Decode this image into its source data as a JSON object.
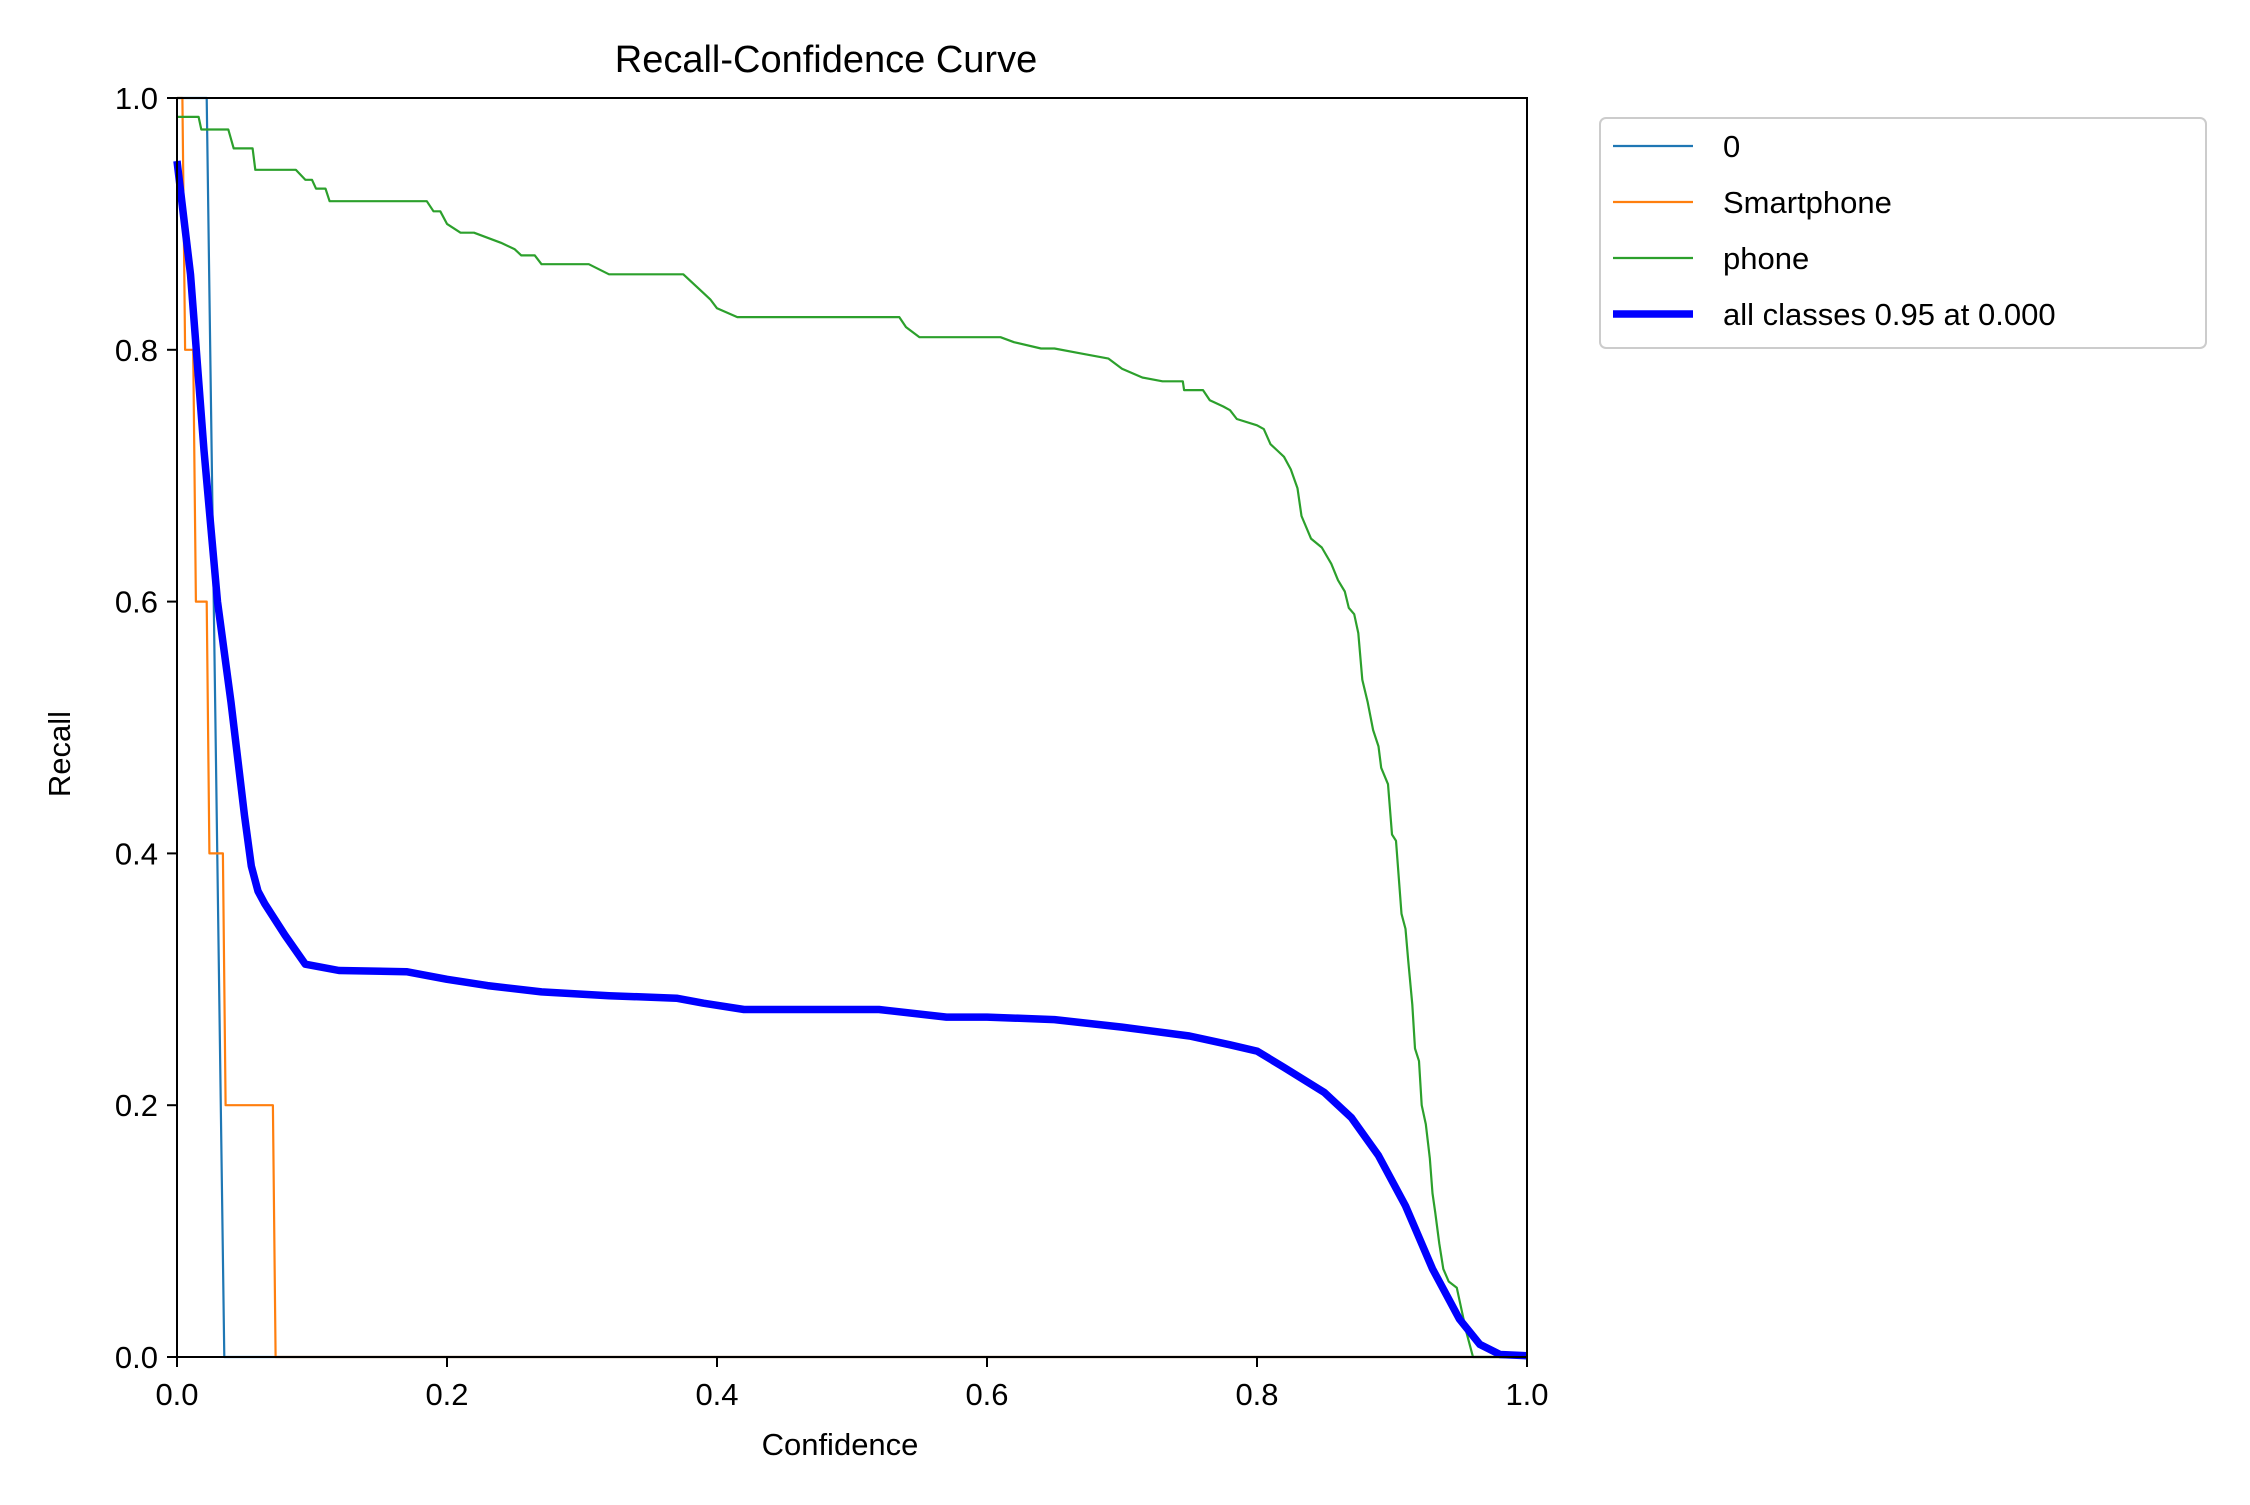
{
  "chart_data": {
    "type": "line",
    "title": "Recall-Confidence Curve",
    "xlabel": "Confidence",
    "ylabel": "Recall",
    "xlim": [
      0.0,
      1.0
    ],
    "ylim": [
      0.0,
      1.0
    ],
    "xticks": [
      "0.0",
      "0.2",
      "0.4",
      "0.6",
      "0.8",
      "1.0"
    ],
    "yticks": [
      "0.0",
      "0.2",
      "0.4",
      "0.6",
      "0.8",
      "1.0"
    ],
    "grid": false,
    "legend_position": "outside upper right",
    "series": [
      {
        "name": "0",
        "color": "#1f77b4",
        "width": "thin",
        "points": [
          [
            0.0,
            1.0
          ],
          [
            0.022,
            1.0
          ],
          [
            0.035,
            0.0
          ],
          [
            1.0,
            0.0
          ]
        ]
      },
      {
        "name": "Smartphone",
        "color": "#ff7f0e",
        "width": "thin",
        "points": [
          [
            0.0,
            1.0
          ],
          [
            0.004,
            1.0
          ],
          [
            0.006,
            0.8
          ],
          [
            0.012,
            0.8
          ],
          [
            0.014,
            0.6
          ],
          [
            0.022,
            0.6
          ],
          [
            0.024,
            0.4
          ],
          [
            0.034,
            0.4
          ],
          [
            0.036,
            0.2
          ],
          [
            0.071,
            0.2
          ],
          [
            0.073,
            0.0
          ],
          [
            1.0,
            0.0
          ]
        ]
      },
      {
        "name": "phone",
        "color": "#2ca02c",
        "width": "thin",
        "points": [
          [
            0.0,
            0.985
          ],
          [
            0.016,
            0.985
          ],
          [
            0.018,
            0.975
          ],
          [
            0.038,
            0.975
          ],
          [
            0.042,
            0.96
          ],
          [
            0.056,
            0.96
          ],
          [
            0.058,
            0.943
          ],
          [
            0.088,
            0.943
          ],
          [
            0.095,
            0.935
          ],
          [
            0.1,
            0.935
          ],
          [
            0.103,
            0.928
          ],
          [
            0.11,
            0.928
          ],
          [
            0.113,
            0.918
          ],
          [
            0.185,
            0.918
          ],
          [
            0.19,
            0.91
          ],
          [
            0.195,
            0.91
          ],
          [
            0.2,
            0.9
          ],
          [
            0.21,
            0.893
          ],
          [
            0.22,
            0.893
          ],
          [
            0.24,
            0.885
          ],
          [
            0.25,
            0.88
          ],
          [
            0.255,
            0.875
          ],
          [
            0.265,
            0.875
          ],
          [
            0.27,
            0.868
          ],
          [
            0.305,
            0.868
          ],
          [
            0.32,
            0.86
          ],
          [
            0.375,
            0.86
          ],
          [
            0.39,
            0.845
          ],
          [
            0.395,
            0.84
          ],
          [
            0.4,
            0.833
          ],
          [
            0.415,
            0.826
          ],
          [
            0.535,
            0.826
          ],
          [
            0.54,
            0.818
          ],
          [
            0.55,
            0.81
          ],
          [
            0.61,
            0.81
          ],
          [
            0.62,
            0.806
          ],
          [
            0.64,
            0.801
          ],
          [
            0.65,
            0.801
          ],
          [
            0.67,
            0.797
          ],
          [
            0.69,
            0.793
          ],
          [
            0.7,
            0.785
          ],
          [
            0.715,
            0.778
          ],
          [
            0.73,
            0.775
          ],
          [
            0.745,
            0.775
          ],
          [
            0.746,
            0.768
          ],
          [
            0.76,
            0.768
          ],
          [
            0.765,
            0.76
          ],
          [
            0.775,
            0.755
          ],
          [
            0.78,
            0.752
          ],
          [
            0.785,
            0.745
          ],
          [
            0.8,
            0.74
          ],
          [
            0.805,
            0.737
          ],
          [
            0.81,
            0.725
          ],
          [
            0.815,
            0.72
          ],
          [
            0.82,
            0.715
          ],
          [
            0.825,
            0.705
          ],
          [
            0.83,
            0.69
          ],
          [
            0.833,
            0.668
          ],
          [
            0.84,
            0.65
          ],
          [
            0.848,
            0.643
          ],
          [
            0.855,
            0.63
          ],
          [
            0.86,
            0.617
          ],
          [
            0.865,
            0.608
          ],
          [
            0.868,
            0.595
          ],
          [
            0.872,
            0.59
          ],
          [
            0.875,
            0.575
          ],
          [
            0.878,
            0.538
          ],
          [
            0.882,
            0.52
          ],
          [
            0.886,
            0.498
          ],
          [
            0.89,
            0.485
          ],
          [
            0.892,
            0.468
          ],
          [
            0.897,
            0.455
          ],
          [
            0.9,
            0.415
          ],
          [
            0.903,
            0.41
          ],
          [
            0.907,
            0.352
          ],
          [
            0.91,
            0.34
          ],
          [
            0.912,
            0.315
          ],
          [
            0.915,
            0.28
          ],
          [
            0.917,
            0.245
          ],
          [
            0.92,
            0.235
          ],
          [
            0.922,
            0.2
          ],
          [
            0.925,
            0.185
          ],
          [
            0.928,
            0.158
          ],
          [
            0.93,
            0.13
          ],
          [
            0.932,
            0.115
          ],
          [
            0.935,
            0.09
          ],
          [
            0.938,
            0.07
          ],
          [
            0.942,
            0.06
          ],
          [
            0.948,
            0.055
          ],
          [
            0.955,
            0.02
          ],
          [
            0.96,
            0.0
          ],
          [
            1.0,
            0.0
          ]
        ]
      },
      {
        "name": "all classes 0.95 at 0.000",
        "color": "#0000ff",
        "width": "thick",
        "points": [
          [
            0.0,
            0.95
          ],
          [
            0.01,
            0.86
          ],
          [
            0.02,
            0.72
          ],
          [
            0.03,
            0.6
          ],
          [
            0.04,
            0.52
          ],
          [
            0.05,
            0.43
          ],
          [
            0.055,
            0.39
          ],
          [
            0.06,
            0.37
          ],
          [
            0.065,
            0.36
          ],
          [
            0.08,
            0.335
          ],
          [
            0.095,
            0.312
          ],
          [
            0.12,
            0.307
          ],
          [
            0.17,
            0.306
          ],
          [
            0.2,
            0.3
          ],
          [
            0.23,
            0.295
          ],
          [
            0.27,
            0.29
          ],
          [
            0.32,
            0.287
          ],
          [
            0.37,
            0.285
          ],
          [
            0.39,
            0.281
          ],
          [
            0.42,
            0.276
          ],
          [
            0.52,
            0.276
          ],
          [
            0.57,
            0.27
          ],
          [
            0.6,
            0.27
          ],
          [
            0.65,
            0.268
          ],
          [
            0.7,
            0.262
          ],
          [
            0.75,
            0.255
          ],
          [
            0.78,
            0.248
          ],
          [
            0.8,
            0.243
          ],
          [
            0.82,
            0.23
          ],
          [
            0.85,
            0.21
          ],
          [
            0.87,
            0.19
          ],
          [
            0.89,
            0.16
          ],
          [
            0.91,
            0.12
          ],
          [
            0.93,
            0.07
          ],
          [
            0.95,
            0.03
          ],
          [
            0.965,
            0.01
          ],
          [
            0.98,
            0.002
          ],
          [
            1.0,
            0.001
          ]
        ]
      }
    ]
  }
}
